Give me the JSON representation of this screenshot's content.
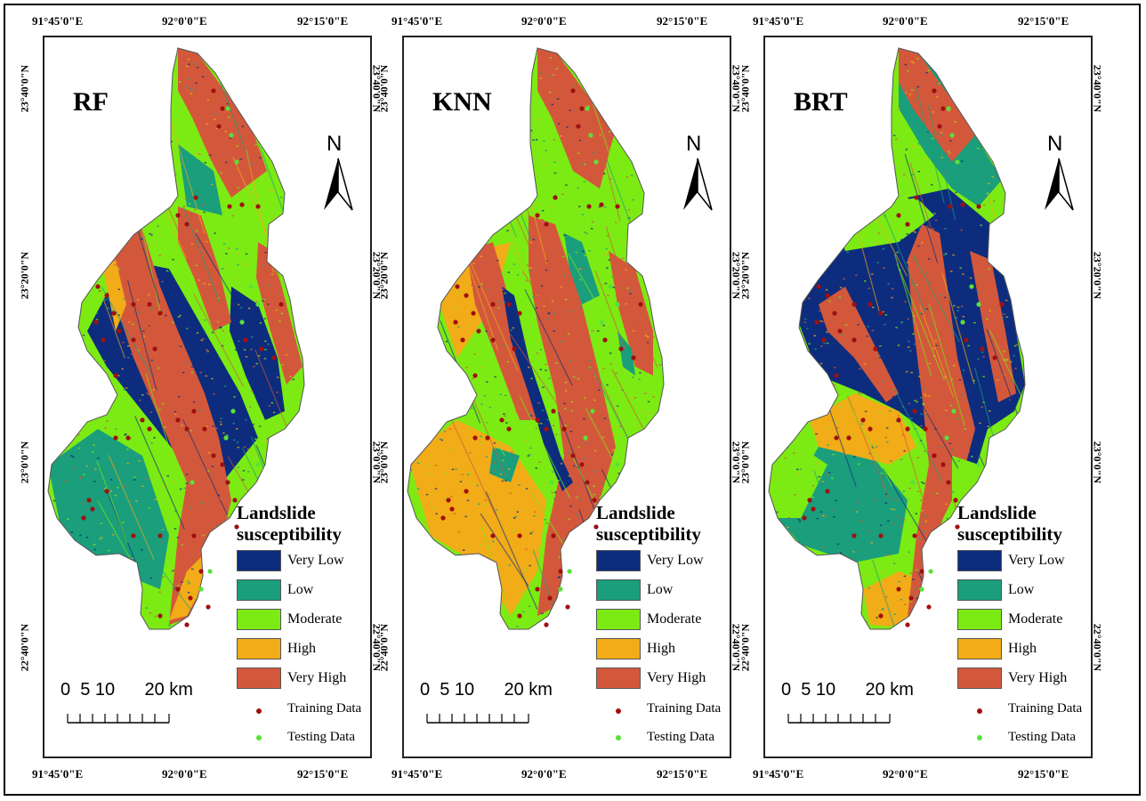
{
  "axes": {
    "top_lon": [
      "91°45'0\"E",
      "92°0'0\"E",
      "92°15'0\"E"
    ],
    "bottom_lon": [
      "91°45'0\"E",
      "92°0'0\"E",
      "92°15'0\"E"
    ],
    "lat": [
      "23°40'0\"N",
      "23°20'0\"N",
      "23°0'0\"N",
      "22°40'0\"N"
    ]
  },
  "north_label": "N",
  "legend": {
    "title_line1": "Landslide",
    "title_line2": "susceptibility",
    "classes": [
      {
        "label": "Very Low",
        "color": "#0d2c7e"
      },
      {
        "label": "Low",
        "color": "#1a9e7c"
      },
      {
        "label": "Moderate",
        "color": "#7ceb13"
      },
      {
        "label": "High",
        "color": "#f1ac18"
      },
      {
        "label": "Very High",
        "color": "#d3583b"
      }
    ],
    "training_label": "Training Data",
    "testing_label": "Testing Data",
    "training_color": "#a01010",
    "testing_color": "#58e13a"
  },
  "scale": {
    "labels": "0  5 10      20 km"
  },
  "panels": [
    {
      "title": "RF",
      "model": "rf"
    },
    {
      "title": "KNN",
      "model": "knn"
    },
    {
      "title": "BRT",
      "model": "brt"
    }
  ]
}
